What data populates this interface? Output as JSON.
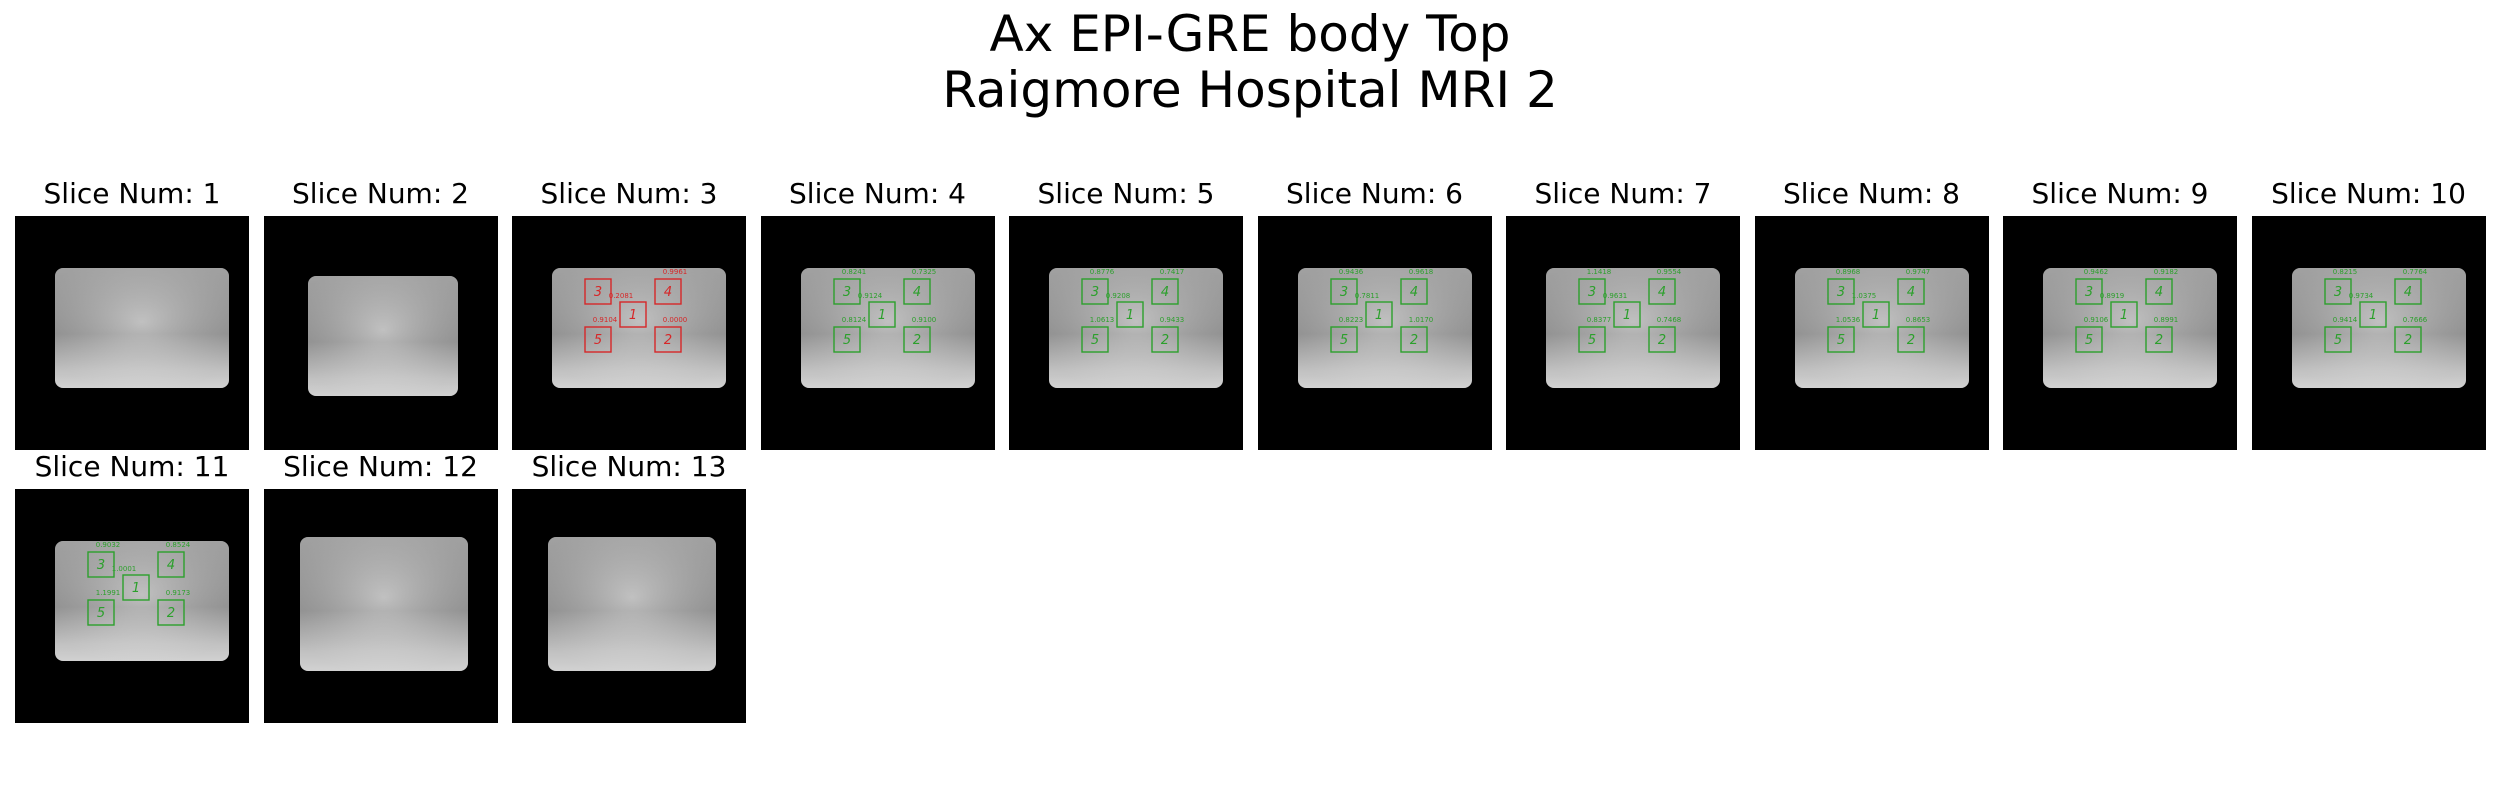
{
  "figure": {
    "title_line1": "Ax EPI-GRE body Top",
    "title_line2": "Raigmore Hospital MRI 2"
  },
  "colors": {
    "background": "#000000",
    "phantom": "#d8d8d8",
    "roi_fail": "#d62728",
    "roi_pass": "#2ca02c"
  },
  "slices": [
    {
      "label": "Slice Num: 1",
      "roi": null,
      "values": []
    },
    {
      "label": "Slice Num: 2",
      "roi": null,
      "values": []
    },
    {
      "label": "Slice Num: 3",
      "roi": "fail",
      "values": [
        "",
        "0.9961",
        "0.9104",
        "0.0000",
        "0.0000"
      ],
      "center": "0.2081"
    },
    {
      "label": "Slice Num: 4",
      "roi": "pass",
      "values": [
        "0.8241",
        "0.7325",
        "0.8124",
        "0.9100",
        "0.9124"
      ],
      "center": "0.9124"
    },
    {
      "label": "Slice Num: 5",
      "roi": "pass",
      "values": [
        "0.8776",
        "0.7417",
        "1.0613",
        "0.9433",
        "0.9208"
      ],
      "center": "0.9208"
    },
    {
      "label": "Slice Num: 6",
      "roi": "pass",
      "values": [
        "0.9436",
        "0.9618",
        "0.8223",
        "1.0170",
        "0.7811"
      ],
      "center": "0.7811"
    },
    {
      "label": "Slice Num: 7",
      "roi": "pass",
      "values": [
        "1.1418",
        "0.9554",
        "0.8377",
        "0.7468",
        "0.9631"
      ],
      "center": "0.9631"
    },
    {
      "label": "Slice Num: 8",
      "roi": "pass",
      "values": [
        "0.8968",
        "0.9747",
        "1.0536",
        "0.8653",
        "1.0375"
      ],
      "center": "1.0375"
    },
    {
      "label": "Slice Num: 9",
      "roi": "pass",
      "values": [
        "0.9462",
        "0.9182",
        "0.9106",
        "0.8991",
        "0.8919"
      ],
      "center": "0.8919"
    },
    {
      "label": "Slice Num: 10",
      "roi": "pass",
      "values": [
        "0.8215",
        "0.7764",
        "0.9414",
        "0.7666",
        "0.9734"
      ],
      "center": "0.9734"
    },
    {
      "label": "Slice Num: 11",
      "roi": "pass",
      "values": [
        "0.9032",
        "0.8524",
        "1.1991",
        "0.9173",
        "1.0001"
      ],
      "center": "1.0001"
    },
    {
      "label": "Slice Num: 12",
      "roi": null,
      "values": []
    },
    {
      "label": "Slice Num: 13",
      "roi": null,
      "values": []
    }
  ]
}
